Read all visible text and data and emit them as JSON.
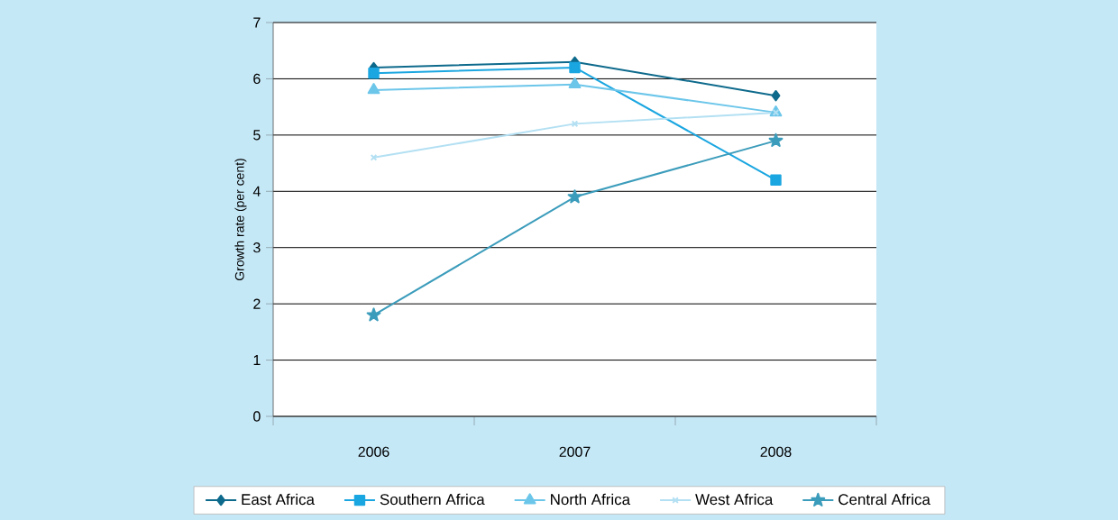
{
  "chart_data": {
    "type": "line",
    "ylabel": "Growth rate (per cent)",
    "categories": [
      "2006",
      "2007",
      "2008"
    ],
    "ylim": [
      0,
      7
    ],
    "yticks": [
      0,
      1,
      2,
      3,
      4,
      5,
      6,
      7
    ],
    "grid": "y",
    "legend": "bottom",
    "line_style": "solid",
    "series": [
      {
        "name": "East Africa",
        "color": "#0e6a8c",
        "marker": "diamond",
        "values": [
          6.2,
          6.3,
          5.7
        ]
      },
      {
        "name": "Southern Africa",
        "color": "#1aa6e0",
        "marker": "square",
        "values": [
          6.1,
          6.2,
          4.2
        ]
      },
      {
        "name": "North Africa",
        "color": "#6cc6ea",
        "marker": "triangle",
        "values": [
          5.8,
          5.9,
          5.4
        ]
      },
      {
        "name": "West Africa",
        "color": "#b3e0f3",
        "marker": "cross",
        "values": [
          4.6,
          5.2,
          5.4
        ]
      },
      {
        "name": "Central Africa",
        "color": "#3b9cbb",
        "marker": "star",
        "values": [
          1.8,
          3.9,
          4.9
        ]
      }
    ]
  }
}
